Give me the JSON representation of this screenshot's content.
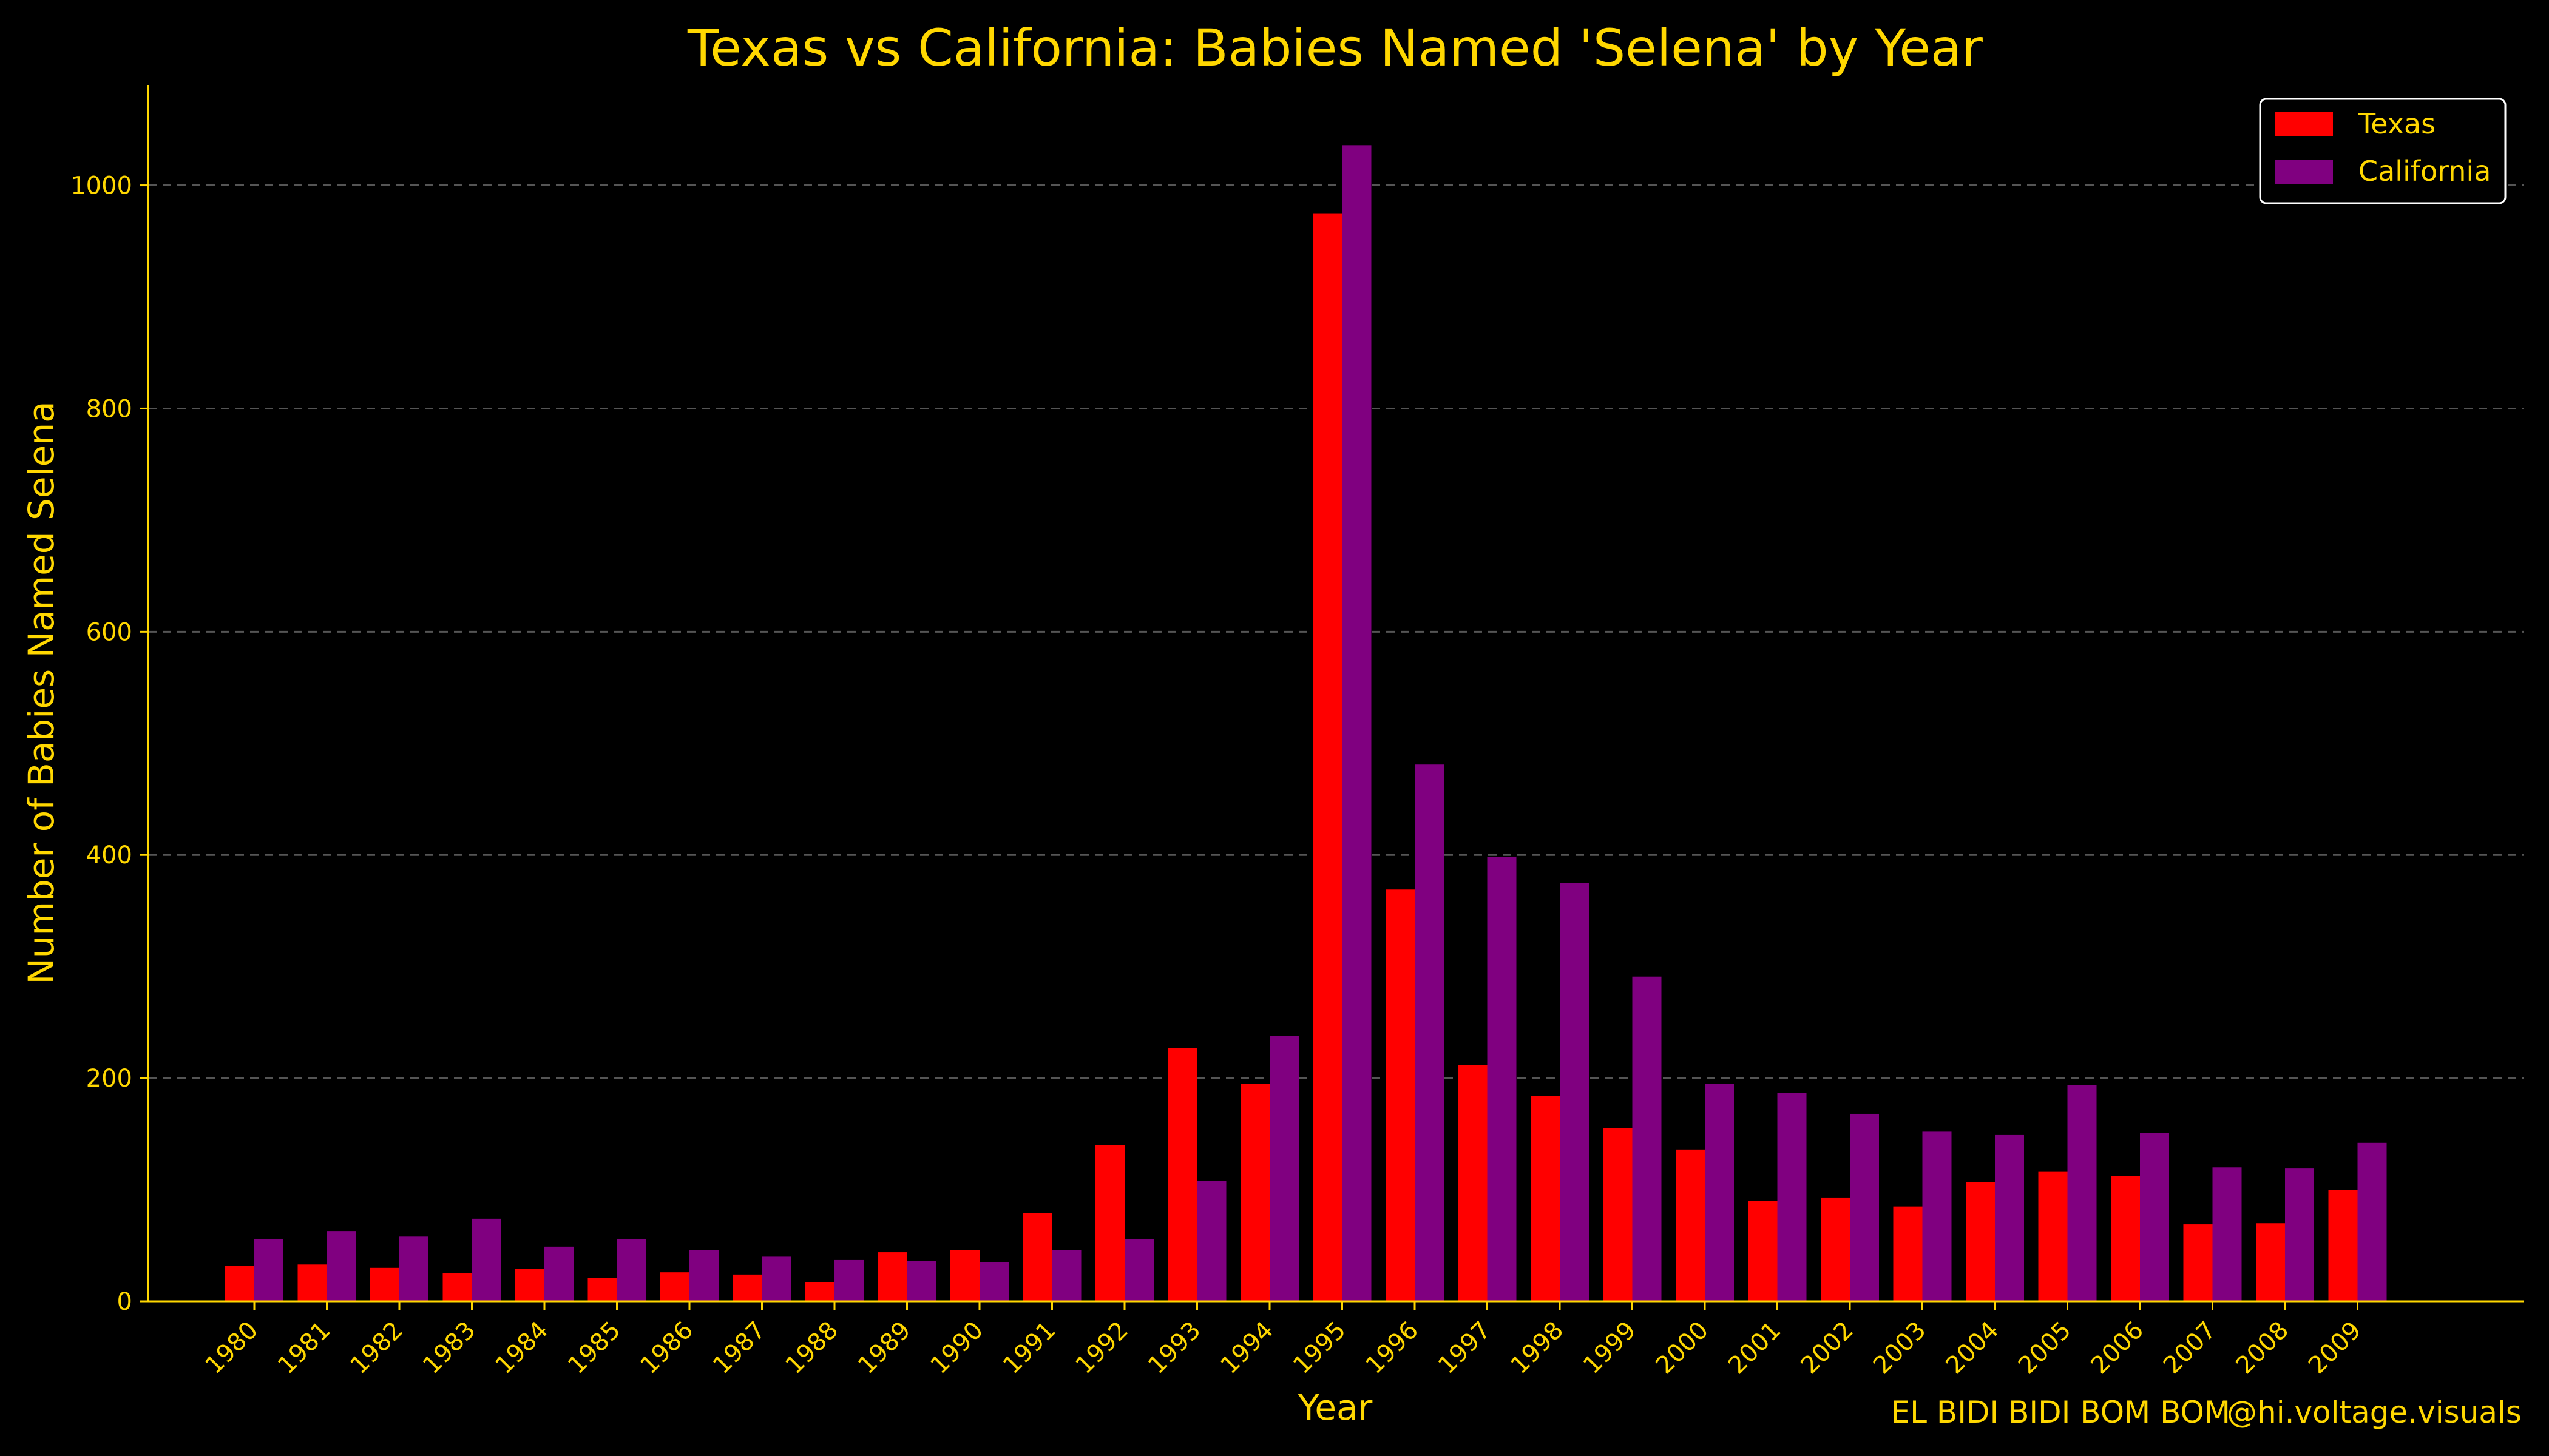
{
  "chart_data": {
    "type": "bar",
    "title": "Texas vs California: Babies Named 'Selena' by Year",
    "xlabel": "Year",
    "ylabel": "Number of Babies Named Selena",
    "ylim": [
      0,
      1090
    ],
    "yticks": [
      0,
      200,
      400,
      600,
      800,
      1000
    ],
    "grid": "horizontal dashed",
    "legend_position": "top-right",
    "categories": [
      "1980",
      "1981",
      "1982",
      "1983",
      "1984",
      "1985",
      "1986",
      "1987",
      "1988",
      "1989",
      "1990",
      "1991",
      "1992",
      "1993",
      "1994",
      "1995",
      "1996",
      "1997",
      "1998",
      "1999",
      "2000",
      "2001",
      "2002",
      "2003",
      "2004",
      "2005",
      "2006",
      "2007",
      "2008",
      "2009"
    ],
    "series": [
      {
        "name": "Texas",
        "color": "#FF0000",
        "values": [
          32,
          33,
          30,
          25,
          29,
          21,
          26,
          24,
          17,
          44,
          46,
          79,
          140,
          227,
          195,
          975,
          369,
          212,
          184,
          155,
          136,
          90,
          93,
          85,
          107,
          116,
          112,
          69,
          70,
          100
        ]
      },
      {
        "name": "California",
        "color": "#800080",
        "values": [
          56,
          63,
          58,
          74,
          49,
          56,
          46,
          40,
          37,
          36,
          35,
          46,
          56,
          108,
          238,
          1036,
          481,
          398,
          375,
          291,
          195,
          187,
          168,
          152,
          149,
          194,
          151,
          120,
          119,
          142
        ]
      }
    ]
  },
  "footer": {
    "caption": "EL BIDI BIDI BOM BOM",
    "handle": "@hi.voltage.visuals"
  },
  "colors": {
    "background": "#000000",
    "text": "#FFD700",
    "axis": "#FFD700",
    "grid": "#555555",
    "legend_border": "#FFFFFF"
  }
}
